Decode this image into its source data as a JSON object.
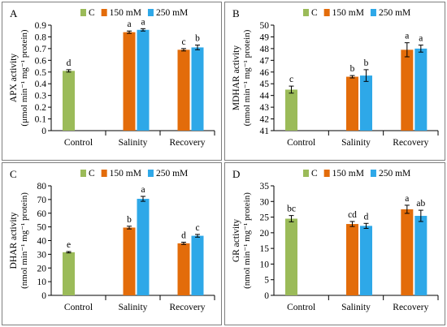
{
  "chart_data": [
    {
      "type": "bar",
      "panel_letter": "A",
      "ylabel": "APX activity",
      "ylabel_units": "(μmol min⁻¹ mg⁻¹ protein)",
      "ylim": [
        0,
        0.9
      ],
      "yticks": [
        "0",
        "0.1",
        "0.2",
        "0.3",
        "0.4",
        "0.5",
        "0.6",
        "0.7",
        "0.8",
        "0.9"
      ],
      "categories": [
        "Control",
        "Salinity",
        "Recovery"
      ],
      "legend": [
        "C",
        "150 mM",
        "250 mM"
      ],
      "legend_position": "top",
      "series": [
        {
          "name": "C",
          "values": [
            0.51,
            null,
            null
          ],
          "errors": [
            0.01,
            null,
            null
          ],
          "letters": [
            "d",
            null,
            null
          ]
        },
        {
          "name": "150 mM",
          "values": [
            null,
            0.84,
            0.69
          ],
          "errors": [
            null,
            0.01,
            0.01
          ],
          "letters": [
            null,
            "a",
            "c"
          ]
        },
        {
          "name": "250 mM",
          "values": [
            null,
            0.86,
            0.71
          ],
          "errors": [
            null,
            0.01,
            0.02
          ],
          "letters": [
            null,
            "a",
            "b"
          ]
        }
      ]
    },
    {
      "type": "bar",
      "panel_letter": "B",
      "ylabel": "MDHAR activity",
      "ylabel_units": "(nmol min⁻¹ mg⁻¹ protein)",
      "ylim": [
        41,
        50
      ],
      "yticks": [
        "41",
        "42",
        "43",
        "44",
        "45",
        "46",
        "47",
        "48",
        "49",
        "50"
      ],
      "categories": [
        "Control",
        "Salinity",
        "Recovery"
      ],
      "legend": [
        "C",
        "150 mM",
        "250 mM"
      ],
      "legend_position": "top",
      "series": [
        {
          "name": "C",
          "values": [
            44.5,
            null,
            null
          ],
          "errors": [
            0.3,
            null,
            null
          ],
          "letters": [
            "c",
            null,
            null
          ]
        },
        {
          "name": "150 mM",
          "values": [
            null,
            45.6,
            47.9
          ],
          "errors": [
            null,
            0.1,
            0.6
          ],
          "letters": [
            null,
            "b",
            "a"
          ]
        },
        {
          "name": "250 mM",
          "values": [
            null,
            45.7,
            48.0
          ],
          "errors": [
            null,
            0.5,
            0.3
          ],
          "letters": [
            null,
            "b",
            "a"
          ]
        }
      ]
    },
    {
      "type": "bar",
      "panel_letter": "C",
      "ylabel": "DHAR activity",
      "ylabel_units": "(nmol min⁻¹ mg⁻¹ protein)",
      "ylim": [
        0,
        80
      ],
      "yticks": [
        "0",
        "10",
        "20",
        "30",
        "40",
        "50",
        "60",
        "70",
        "80"
      ],
      "categories": [
        "Control",
        "Salinity",
        "Recovery"
      ],
      "legend": [
        "C",
        "150 mM",
        "250 mM"
      ],
      "legend_position": "top",
      "series": [
        {
          "name": "C",
          "values": [
            31.5,
            null,
            null
          ],
          "errors": [
            0.5,
            null,
            null
          ],
          "letters": [
            "e",
            null,
            null
          ]
        },
        {
          "name": "150 mM",
          "values": [
            null,
            49.5,
            38.0
          ],
          "errors": [
            null,
            1.0,
            0.8
          ],
          "letters": [
            null,
            "b",
            "d"
          ]
        },
        {
          "name": "250 mM",
          "values": [
            null,
            70.5,
            43.5
          ],
          "errors": [
            null,
            1.8,
            1.0
          ],
          "letters": [
            null,
            "a",
            "c"
          ]
        }
      ]
    },
    {
      "type": "bar",
      "panel_letter": "D",
      "ylabel": "GR activity",
      "ylabel_units": "(nmol min⁻¹ mg⁻¹ protein)",
      "ylim": [
        0,
        35
      ],
      "yticks": [
        "0",
        "5",
        "10",
        "15",
        "20",
        "25",
        "30",
        "35"
      ],
      "categories": [
        "Control",
        "Salinity",
        "Recovery"
      ],
      "legend": [
        "C",
        "150 mM",
        "250 mM"
      ],
      "legend_position": "top",
      "series": [
        {
          "name": "C",
          "values": [
            24.5,
            null,
            null
          ],
          "errors": [
            1.0,
            null,
            null
          ],
          "letters": [
            "bc",
            null,
            null
          ]
        },
        {
          "name": "150 mM",
          "values": [
            null,
            22.8,
            27.5
          ],
          "errors": [
            null,
            0.8,
            1.3
          ],
          "letters": [
            null,
            "cd",
            "a"
          ]
        },
        {
          "name": "250 mM",
          "values": [
            null,
            22.2,
            25.4
          ],
          "errors": [
            null,
            0.8,
            1.8
          ],
          "letters": [
            null,
            "d",
            "ab"
          ]
        }
      ]
    }
  ],
  "colors": {
    "C": "#9bbb59",
    "150 mM": "#e36c0a",
    "250 mM": "#2ea8e8",
    "axis": "#000000",
    "frame": "#7f7f7f"
  }
}
